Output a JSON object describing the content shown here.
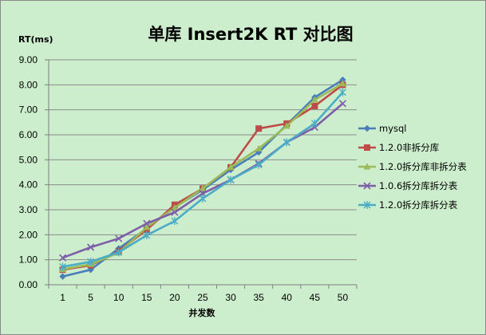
{
  "chart_data": {
    "type": "line",
    "title": "单库 Insert2K RT 对比图",
    "ylabel": "RT(ms)",
    "xlabel": "并发数",
    "categories": [
      "1",
      "5",
      "10",
      "15",
      "20",
      "25",
      "30",
      "35",
      "40",
      "45",
      "50"
    ],
    "ylim": [
      0,
      9
    ],
    "yticks": [
      "0.00",
      "1.00",
      "2.00",
      "3.00",
      "4.00",
      "5.00",
      "6.00",
      "7.00",
      "8.00",
      "9.00"
    ],
    "grid": true,
    "legend_position": "right",
    "series": [
      {
        "name": "mysql",
        "color": "#4a7ebb",
        "marker": "diamond",
        "values": [
          0.33,
          0.6,
          1.45,
          2.25,
          3.1,
          3.8,
          4.6,
          5.3,
          6.4,
          7.5,
          8.2
        ]
      },
      {
        "name": "1.2.0非拆分库",
        "color": "#be4b48",
        "marker": "square",
        "values": [
          0.6,
          0.78,
          1.35,
          2.2,
          3.2,
          3.85,
          4.7,
          6.25,
          6.45,
          7.15,
          8.0
        ]
      },
      {
        "name": "1.2.0拆分库非拆分表",
        "color": "#9bbb59",
        "marker": "triangle",
        "values": [
          0.62,
          0.82,
          1.28,
          2.3,
          3.08,
          3.85,
          4.7,
          5.45,
          6.35,
          7.4,
          8.05
        ]
      },
      {
        "name": "1.0.6拆分库拆分表",
        "color": "#7e5ea8",
        "marker": "x",
        "values": [
          1.08,
          1.5,
          1.85,
          2.45,
          2.9,
          3.65,
          4.2,
          4.85,
          5.7,
          6.3,
          7.25
        ]
      },
      {
        "name": "1.2.0拆分库拆分表",
        "color": "#4bacc6",
        "marker": "star",
        "values": [
          0.72,
          0.92,
          1.3,
          1.98,
          2.55,
          3.45,
          4.2,
          4.8,
          5.7,
          6.45,
          7.7
        ]
      }
    ]
  }
}
